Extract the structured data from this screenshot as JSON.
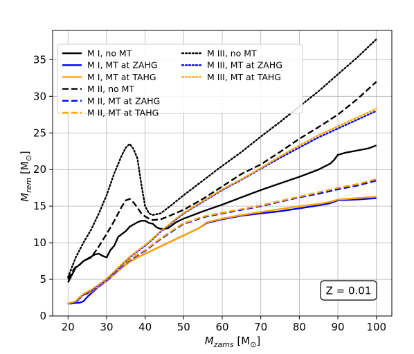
{
  "chart_data": {
    "type": "line",
    "xlabel_main": "M",
    "xlabel_sub": "zams",
    "xlabel_unit": " [M",
    "xlabel_close": "]",
    "ylabel_main": "M",
    "ylabel_sub": "rem",
    "ylabel_unit": " [M",
    "ylabel_close": "]",
    "sun_symbol": "⊙",
    "xlim": [
      16,
      104
    ],
    "ylim": [
      0,
      39
    ],
    "xticks": [
      20,
      30,
      40,
      50,
      60,
      70,
      80,
      90,
      100
    ],
    "yticks": [
      0,
      5,
      10,
      15,
      20,
      25,
      30,
      35
    ],
    "grid": true,
    "legend_placement": "top-left",
    "annotation": "Z = 0.01",
    "series": [
      {
        "name": "M I, no MT",
        "color": "#000000",
        "dash": "solid",
        "x": [
          20,
          21,
          22,
          23,
          24,
          25,
          26,
          27,
          28,
          29,
          30,
          31,
          32,
          33,
          34,
          35,
          36,
          37,
          38,
          39,
          40,
          41,
          42,
          43,
          44,
          45,
          46,
          48,
          50,
          55,
          60,
          65,
          70,
          75,
          80,
          85,
          88,
          89,
          90,
          92,
          95,
          98,
          100
        ],
        "y": [
          4.6,
          5.6,
          6.6,
          7.0,
          7.5,
          7.8,
          8.1,
          8.4,
          8.5,
          8.2,
          8.0,
          9.0,
          9.6,
          10.8,
          11.2,
          11.6,
          12.2,
          12.5,
          12.8,
          13.0,
          13.0,
          12.7,
          12.6,
          12.1,
          11.9,
          11.9,
          12.0,
          12.8,
          13.3,
          14.3,
          15.2,
          16.2,
          17.2,
          18.1,
          19.0,
          20.0,
          20.8,
          21.3,
          22.0,
          22.3,
          22.6,
          22.9,
          23.3
        ]
      },
      {
        "name": "M I, MT at ZAHG",
        "color": "#0000ff",
        "dash": "solid",
        "x": [
          20,
          21,
          22,
          23,
          24,
          25,
          26,
          28,
          30,
          32,
          34,
          36,
          38,
          40,
          42,
          44,
          46,
          48,
          50,
          52,
          54,
          56,
          60,
          65,
          70,
          75,
          80,
          85,
          88,
          90,
          95,
          100
        ],
        "y": [
          1.7,
          1.7,
          1.8,
          1.8,
          2.0,
          2.6,
          3.1,
          4.0,
          4.8,
          5.7,
          6.6,
          7.4,
          8.0,
          8.5,
          9.0,
          9.5,
          10.0,
          10.5,
          11.0,
          11.5,
          12.0,
          12.7,
          13.2,
          13.7,
          14.0,
          14.3,
          14.7,
          15.1,
          15.4,
          15.8,
          15.9,
          16.1
        ]
      },
      {
        "name": "M I, MT at TAHG",
        "color": "#ffa500",
        "dash": "solid",
        "x": [
          20,
          21,
          22,
          23,
          24,
          25,
          26,
          28,
          30,
          32,
          34,
          36,
          38,
          40,
          42,
          44,
          46,
          48,
          50,
          52,
          54,
          56,
          60,
          65,
          70,
          75,
          80,
          85,
          88,
          90,
          95,
          100
        ],
        "y": [
          1.7,
          1.8,
          2.0,
          2.6,
          2.9,
          3.0,
          3.3,
          4.0,
          4.8,
          5.7,
          6.6,
          7.4,
          8.0,
          8.5,
          9.0,
          9.5,
          10.0,
          10.5,
          11.0,
          11.5,
          12.0,
          12.8,
          13.3,
          13.8,
          14.2,
          14.6,
          15.0,
          15.3,
          15.6,
          15.9,
          16.1,
          16.3
        ]
      },
      {
        "name": "M II, no MT",
        "color": "#000000",
        "dash": "dashed",
        "x": [
          20,
          21,
          22,
          23,
          24,
          26,
          28,
          30,
          32,
          34,
          35,
          36,
          37,
          38,
          39,
          40,
          41,
          42,
          44,
          46,
          50,
          55,
          60,
          65,
          70,
          75,
          80,
          85,
          90,
          95,
          100
        ],
        "y": [
          5.0,
          6.0,
          6.7,
          7.0,
          7.5,
          8.0,
          9.5,
          11.2,
          13.0,
          15.0,
          15.8,
          16.0,
          15.5,
          14.8,
          14.0,
          13.6,
          13.3,
          13.1,
          13.2,
          13.6,
          14.5,
          16.0,
          17.7,
          19.4,
          20.7,
          22.4,
          24.2,
          25.8,
          27.5,
          29.6,
          32.0
        ]
      },
      {
        "name": "M II, MT at ZAHG",
        "color": "#0000ff",
        "dash": "dashed",
        "x": [
          20,
          22,
          24,
          26,
          28,
          30,
          32,
          34,
          36,
          38,
          40,
          42,
          44,
          46,
          48,
          50,
          52,
          54,
          56,
          58,
          60,
          65,
          70,
          75,
          80,
          85,
          90,
          95,
          100
        ],
        "y": [
          1.7,
          1.9,
          2.9,
          3.4,
          4.0,
          4.8,
          5.8,
          6.8,
          7.6,
          8.3,
          8.9,
          9.7,
          10.5,
          11.2,
          11.9,
          12.6,
          12.9,
          13.3,
          13.6,
          13.8,
          14.0,
          14.5,
          15.0,
          15.6,
          16.2,
          16.7,
          17.3,
          17.8,
          18.5
        ]
      },
      {
        "name": "M II, MT at TAHG",
        "color": "#ffa500",
        "dash": "dashed",
        "x": [
          20,
          22,
          24,
          26,
          28,
          30,
          32,
          34,
          36,
          38,
          40,
          42,
          44,
          46,
          48,
          50,
          52,
          54,
          56,
          58,
          60,
          65,
          70,
          75,
          80,
          85,
          90,
          95,
          100
        ],
        "y": [
          1.7,
          2.0,
          3.0,
          3.5,
          4.1,
          4.9,
          5.9,
          6.9,
          7.7,
          8.4,
          9.0,
          9.8,
          10.6,
          11.3,
          12.0,
          12.7,
          13.0,
          13.4,
          13.7,
          13.9,
          14.1,
          14.6,
          15.1,
          15.7,
          16.3,
          16.9,
          17.5,
          18.0,
          18.7
        ]
      },
      {
        "name": "M III, no MT",
        "color": "#000000",
        "dash": "dotted",
        "x": [
          20,
          22,
          24,
          26,
          28,
          30,
          32,
          34,
          35,
          36,
          37,
          38,
          39,
          40,
          41,
          42,
          44,
          46,
          50,
          55,
          60,
          65,
          70,
          75,
          80,
          85,
          90,
          95,
          100
        ],
        "y": [
          5.3,
          8.0,
          10.0,
          11.8,
          14.0,
          16.5,
          19.5,
          22.0,
          23.0,
          23.5,
          22.8,
          21.5,
          18.0,
          15.0,
          14.0,
          13.8,
          14.0,
          14.8,
          16.5,
          18.5,
          20.5,
          22.4,
          24.5,
          26.5,
          28.6,
          30.7,
          33.0,
          35.3,
          37.8
        ]
      },
      {
        "name": "M III, MT at ZAHG",
        "color": "#0000ff",
        "dash": "dotted",
        "x": [
          20,
          22,
          24,
          26,
          28,
          30,
          32,
          34,
          36,
          38,
          40,
          42,
          44,
          46,
          48,
          50,
          55,
          60,
          65,
          70,
          75,
          80,
          85,
          90,
          95,
          100
        ],
        "y": [
          1.7,
          1.9,
          2.9,
          3.5,
          4.2,
          5.0,
          6.0,
          7.0,
          8.0,
          8.8,
          9.6,
          10.5,
          11.5,
          12.3,
          13.2,
          14.0,
          15.6,
          17.2,
          18.6,
          20.1,
          21.6,
          23.0,
          24.4,
          25.6,
          26.8,
          28.0
        ]
      },
      {
        "name": "M III, MT at TAHG",
        "color": "#ffa500",
        "dash": "dotted",
        "x": [
          20,
          22,
          24,
          26,
          28,
          30,
          32,
          34,
          36,
          38,
          40,
          42,
          44,
          46,
          48,
          50,
          55,
          60,
          65,
          70,
          75,
          80,
          85,
          90,
          95,
          100
        ],
        "y": [
          1.7,
          2.0,
          3.0,
          3.6,
          4.3,
          5.1,
          6.1,
          7.1,
          8.1,
          8.9,
          9.7,
          10.6,
          11.6,
          12.4,
          13.3,
          14.1,
          15.7,
          17.3,
          18.7,
          20.2,
          21.8,
          23.3,
          24.7,
          25.9,
          27.1,
          28.3
        ]
      }
    ]
  }
}
